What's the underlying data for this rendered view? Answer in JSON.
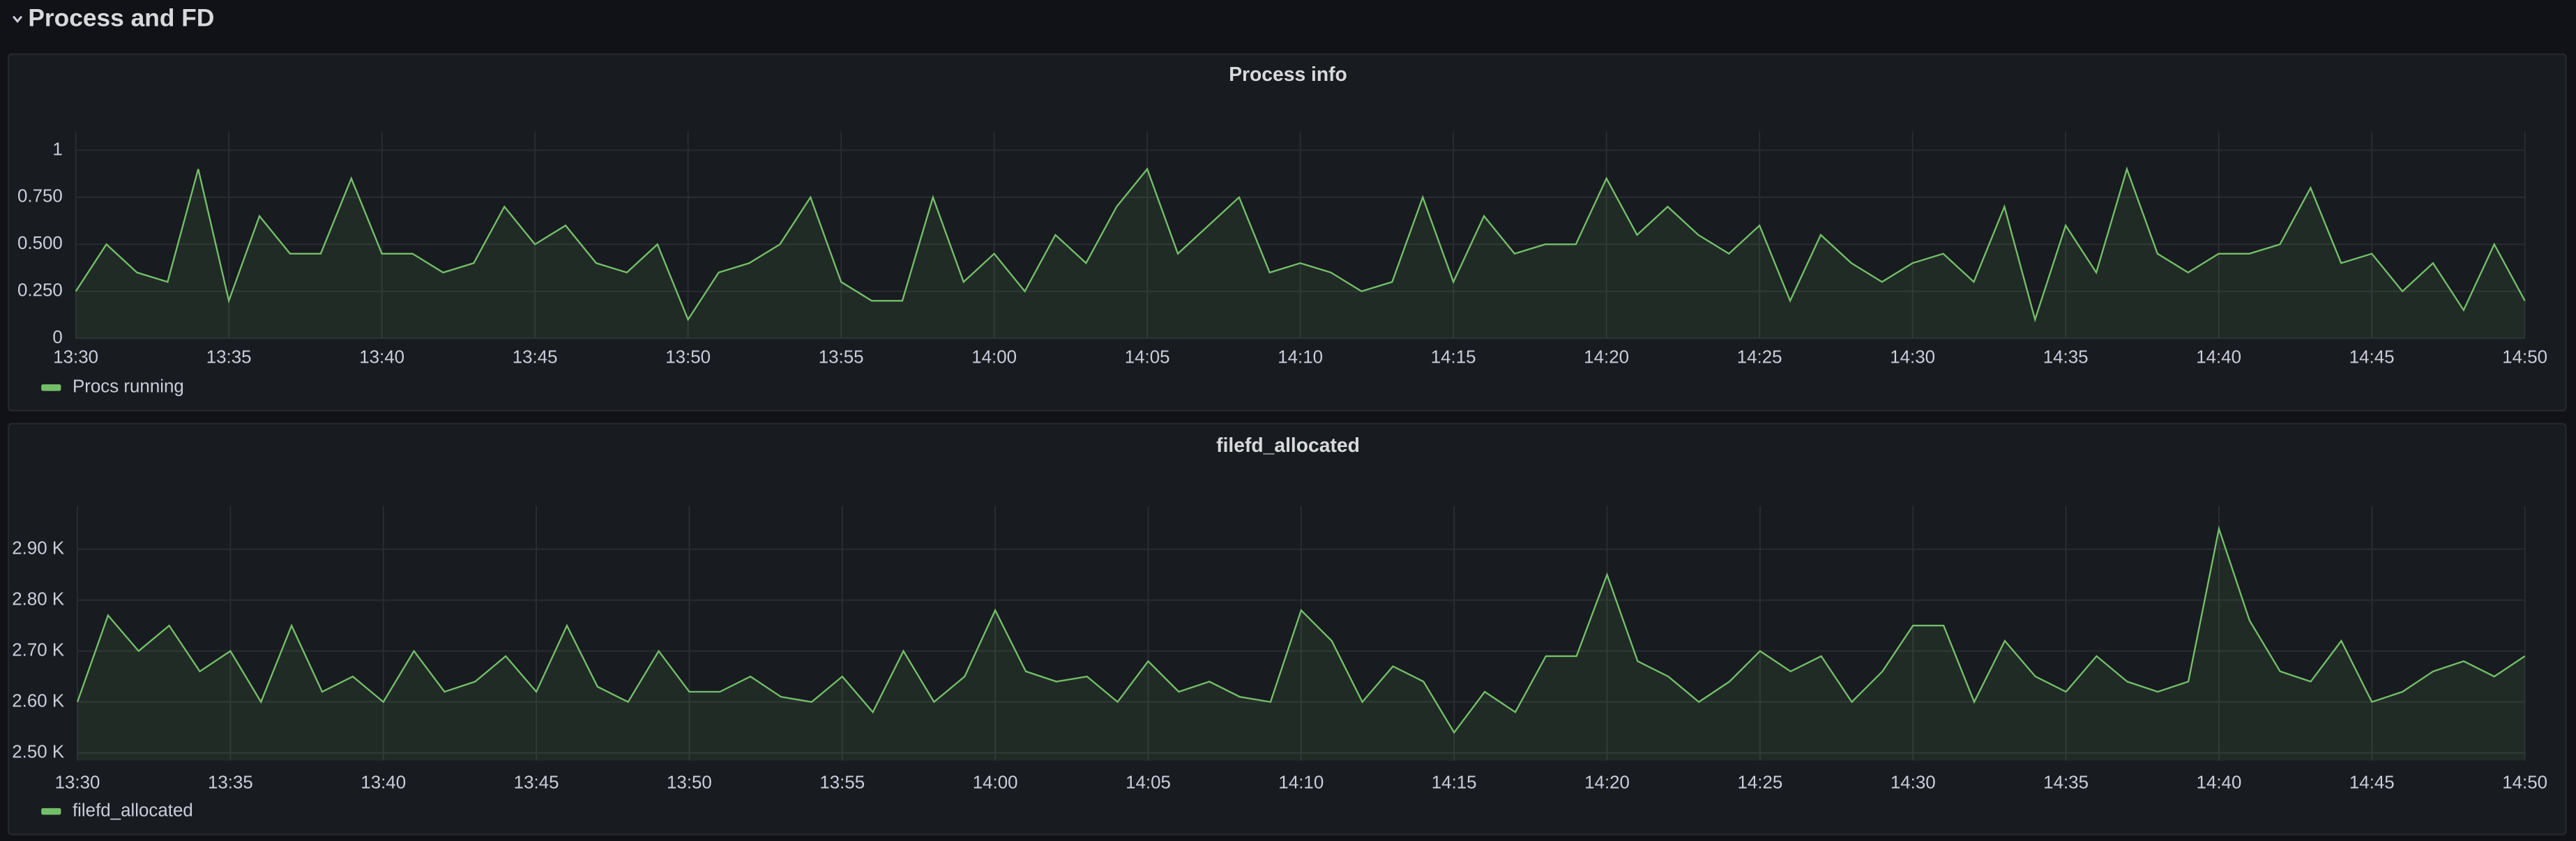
{
  "header": {
    "title": "Process and FD"
  },
  "chart_data": [
    {
      "type": "line",
      "title": "Process info",
      "x": [
        "13:30",
        "13:31",
        "13:32",
        "13:33",
        "13:34",
        "13:35",
        "13:36",
        "13:37",
        "13:38",
        "13:39",
        "13:40",
        "13:41",
        "13:42",
        "13:43",
        "13:44",
        "13:45",
        "13:46",
        "13:47",
        "13:48",
        "13:49",
        "13:50",
        "13:51",
        "13:52",
        "13:53",
        "13:54",
        "13:55",
        "13:56",
        "13:57",
        "13:58",
        "13:59",
        "14:00",
        "14:01",
        "14:02",
        "14:03",
        "14:04",
        "14:05",
        "14:06",
        "14:07",
        "14:08",
        "14:09",
        "14:10",
        "14:11",
        "14:12",
        "14:13",
        "14:14",
        "14:15",
        "14:16",
        "14:17",
        "14:18",
        "14:19",
        "14:20",
        "14:21",
        "14:22",
        "14:23",
        "14:24",
        "14:25",
        "14:26",
        "14:27",
        "14:28",
        "14:29",
        "14:30",
        "14:31",
        "14:32",
        "14:33",
        "14:34",
        "14:35",
        "14:36",
        "14:37",
        "14:38",
        "14:39",
        "14:40",
        "14:41",
        "14:42",
        "14:43",
        "14:44",
        "14:45",
        "14:46",
        "14:47",
        "14:48",
        "14:49",
        "14:50"
      ],
      "series": [
        {
          "name": "Procs running",
          "color": "#73bf69",
          "values": [
            0.25,
            0.5,
            0.35,
            0.3,
            0.9,
            0.2,
            0.65,
            0.45,
            0.45,
            0.85,
            0.45,
            0.45,
            0.35,
            0.4,
            0.7,
            0.5,
            0.6,
            0.4,
            0.35,
            0.5,
            0.1,
            0.35,
            0.4,
            0.5,
            0.75,
            0.3,
            0.2,
            0.2,
            0.75,
            0.3,
            0.45,
            0.25,
            0.55,
            0.4,
            0.7,
            0.9,
            0.45,
            0.6,
            0.75,
            0.35,
            0.4,
            0.35,
            0.25,
            0.3,
            0.75,
            0.3,
            0.65,
            0.45,
            0.5,
            0.5,
            0.85,
            0.55,
            0.7,
            0.55,
            0.45,
            0.6,
            0.2,
            0.55,
            0.4,
            0.3,
            0.4,
            0.45,
            0.3,
            0.7,
            0.1,
            0.6,
            0.35,
            0.9,
            0.45,
            0.35,
            0.45,
            0.45,
            0.5,
            0.8,
            0.4,
            0.45,
            0.25,
            0.4,
            0.15,
            0.5,
            0.2
          ]
        }
      ],
      "ylim": [
        0,
        1.1
      ],
      "yticks": [
        0,
        {
          "value": 0.25,
          "label": "0.250"
        },
        {
          "value": 0.5,
          "label": "0.500"
        },
        {
          "value": 0.75,
          "label": "0.750"
        },
        1
      ],
      "xticks": [
        "13:30",
        "13:35",
        "13:40",
        "13:45",
        "13:50",
        "13:55",
        "14:00",
        "14:05",
        "14:10",
        "14:15",
        "14:20",
        "14:25",
        "14:30",
        "14:35",
        "14:40",
        "14:45",
        "14:50"
      ],
      "grid": true,
      "legend": "bottom-left"
    },
    {
      "type": "line",
      "title": "filefd_allocated",
      "x": [
        "13:30",
        "13:31",
        "13:32",
        "13:33",
        "13:34",
        "13:35",
        "13:36",
        "13:37",
        "13:38",
        "13:39",
        "13:40",
        "13:41",
        "13:42",
        "13:43",
        "13:44",
        "13:45",
        "13:46",
        "13:47",
        "13:48",
        "13:49",
        "13:50",
        "13:51",
        "13:52",
        "13:53",
        "13:54",
        "13:55",
        "13:56",
        "13:57",
        "13:58",
        "13:59",
        "14:00",
        "14:01",
        "14:02",
        "14:03",
        "14:04",
        "14:05",
        "14:06",
        "14:07",
        "14:08",
        "14:09",
        "14:10",
        "14:11",
        "14:12",
        "14:13",
        "14:14",
        "14:15",
        "14:16",
        "14:17",
        "14:18",
        "14:19",
        "14:20",
        "14:21",
        "14:22",
        "14:23",
        "14:24",
        "14:25",
        "14:26",
        "14:27",
        "14:28",
        "14:29",
        "14:30",
        "14:31",
        "14:32",
        "14:33",
        "14:34",
        "14:35",
        "14:36",
        "14:37",
        "14:38",
        "14:39",
        "14:40",
        "14:41",
        "14:42",
        "14:43",
        "14:44",
        "14:45",
        "14:46",
        "14:47",
        "14:48",
        "14:49",
        "14:50"
      ],
      "series": [
        {
          "name": "filefd_allocated",
          "color": "#73bf69",
          "values": [
            2600,
            2770,
            2700,
            2750,
            2660,
            2700,
            2600,
            2750,
            2620,
            2650,
            2600,
            2700,
            2620,
            2640,
            2690,
            2620,
            2750,
            2630,
            2600,
            2700,
            2620,
            2620,
            2650,
            2610,
            2600,
            2650,
            2580,
            2700,
            2600,
            2650,
            2780,
            2660,
            2640,
            2650,
            2600,
            2680,
            2620,
            2640,
            2610,
            2600,
            2780,
            2720,
            2600,
            2670,
            2640,
            2540,
            2620,
            2580,
            2690,
            2690,
            2850,
            2680,
            2650,
            2600,
            2640,
            2700,
            2660,
            2690,
            2600,
            2660,
            2750,
            2750,
            2600,
            2720,
            2650,
            2620,
            2690,
            2640,
            2620,
            2640,
            2940,
            2760,
            2660,
            2640,
            2720,
            2600,
            2620,
            2660,
            2680,
            2650,
            2690
          ]
        }
      ],
      "ylim": [
        2485,
        2985
      ],
      "yticks": [
        {
          "value": 2500,
          "label": "2.50 K"
        },
        {
          "value": 2600,
          "label": "2.60 K"
        },
        {
          "value": 2700,
          "label": "2.70 K"
        },
        {
          "value": 2800,
          "label": "2.80 K"
        },
        {
          "value": 2900,
          "label": "2.90 K"
        }
      ],
      "xticks": [
        "13:30",
        "13:35",
        "13:40",
        "13:45",
        "13:50",
        "13:55",
        "14:00",
        "14:05",
        "14:10",
        "14:15",
        "14:20",
        "14:25",
        "14:30",
        "14:35",
        "14:40",
        "14:45",
        "14:50"
      ],
      "grid": true,
      "legend": "bottom-left"
    }
  ]
}
